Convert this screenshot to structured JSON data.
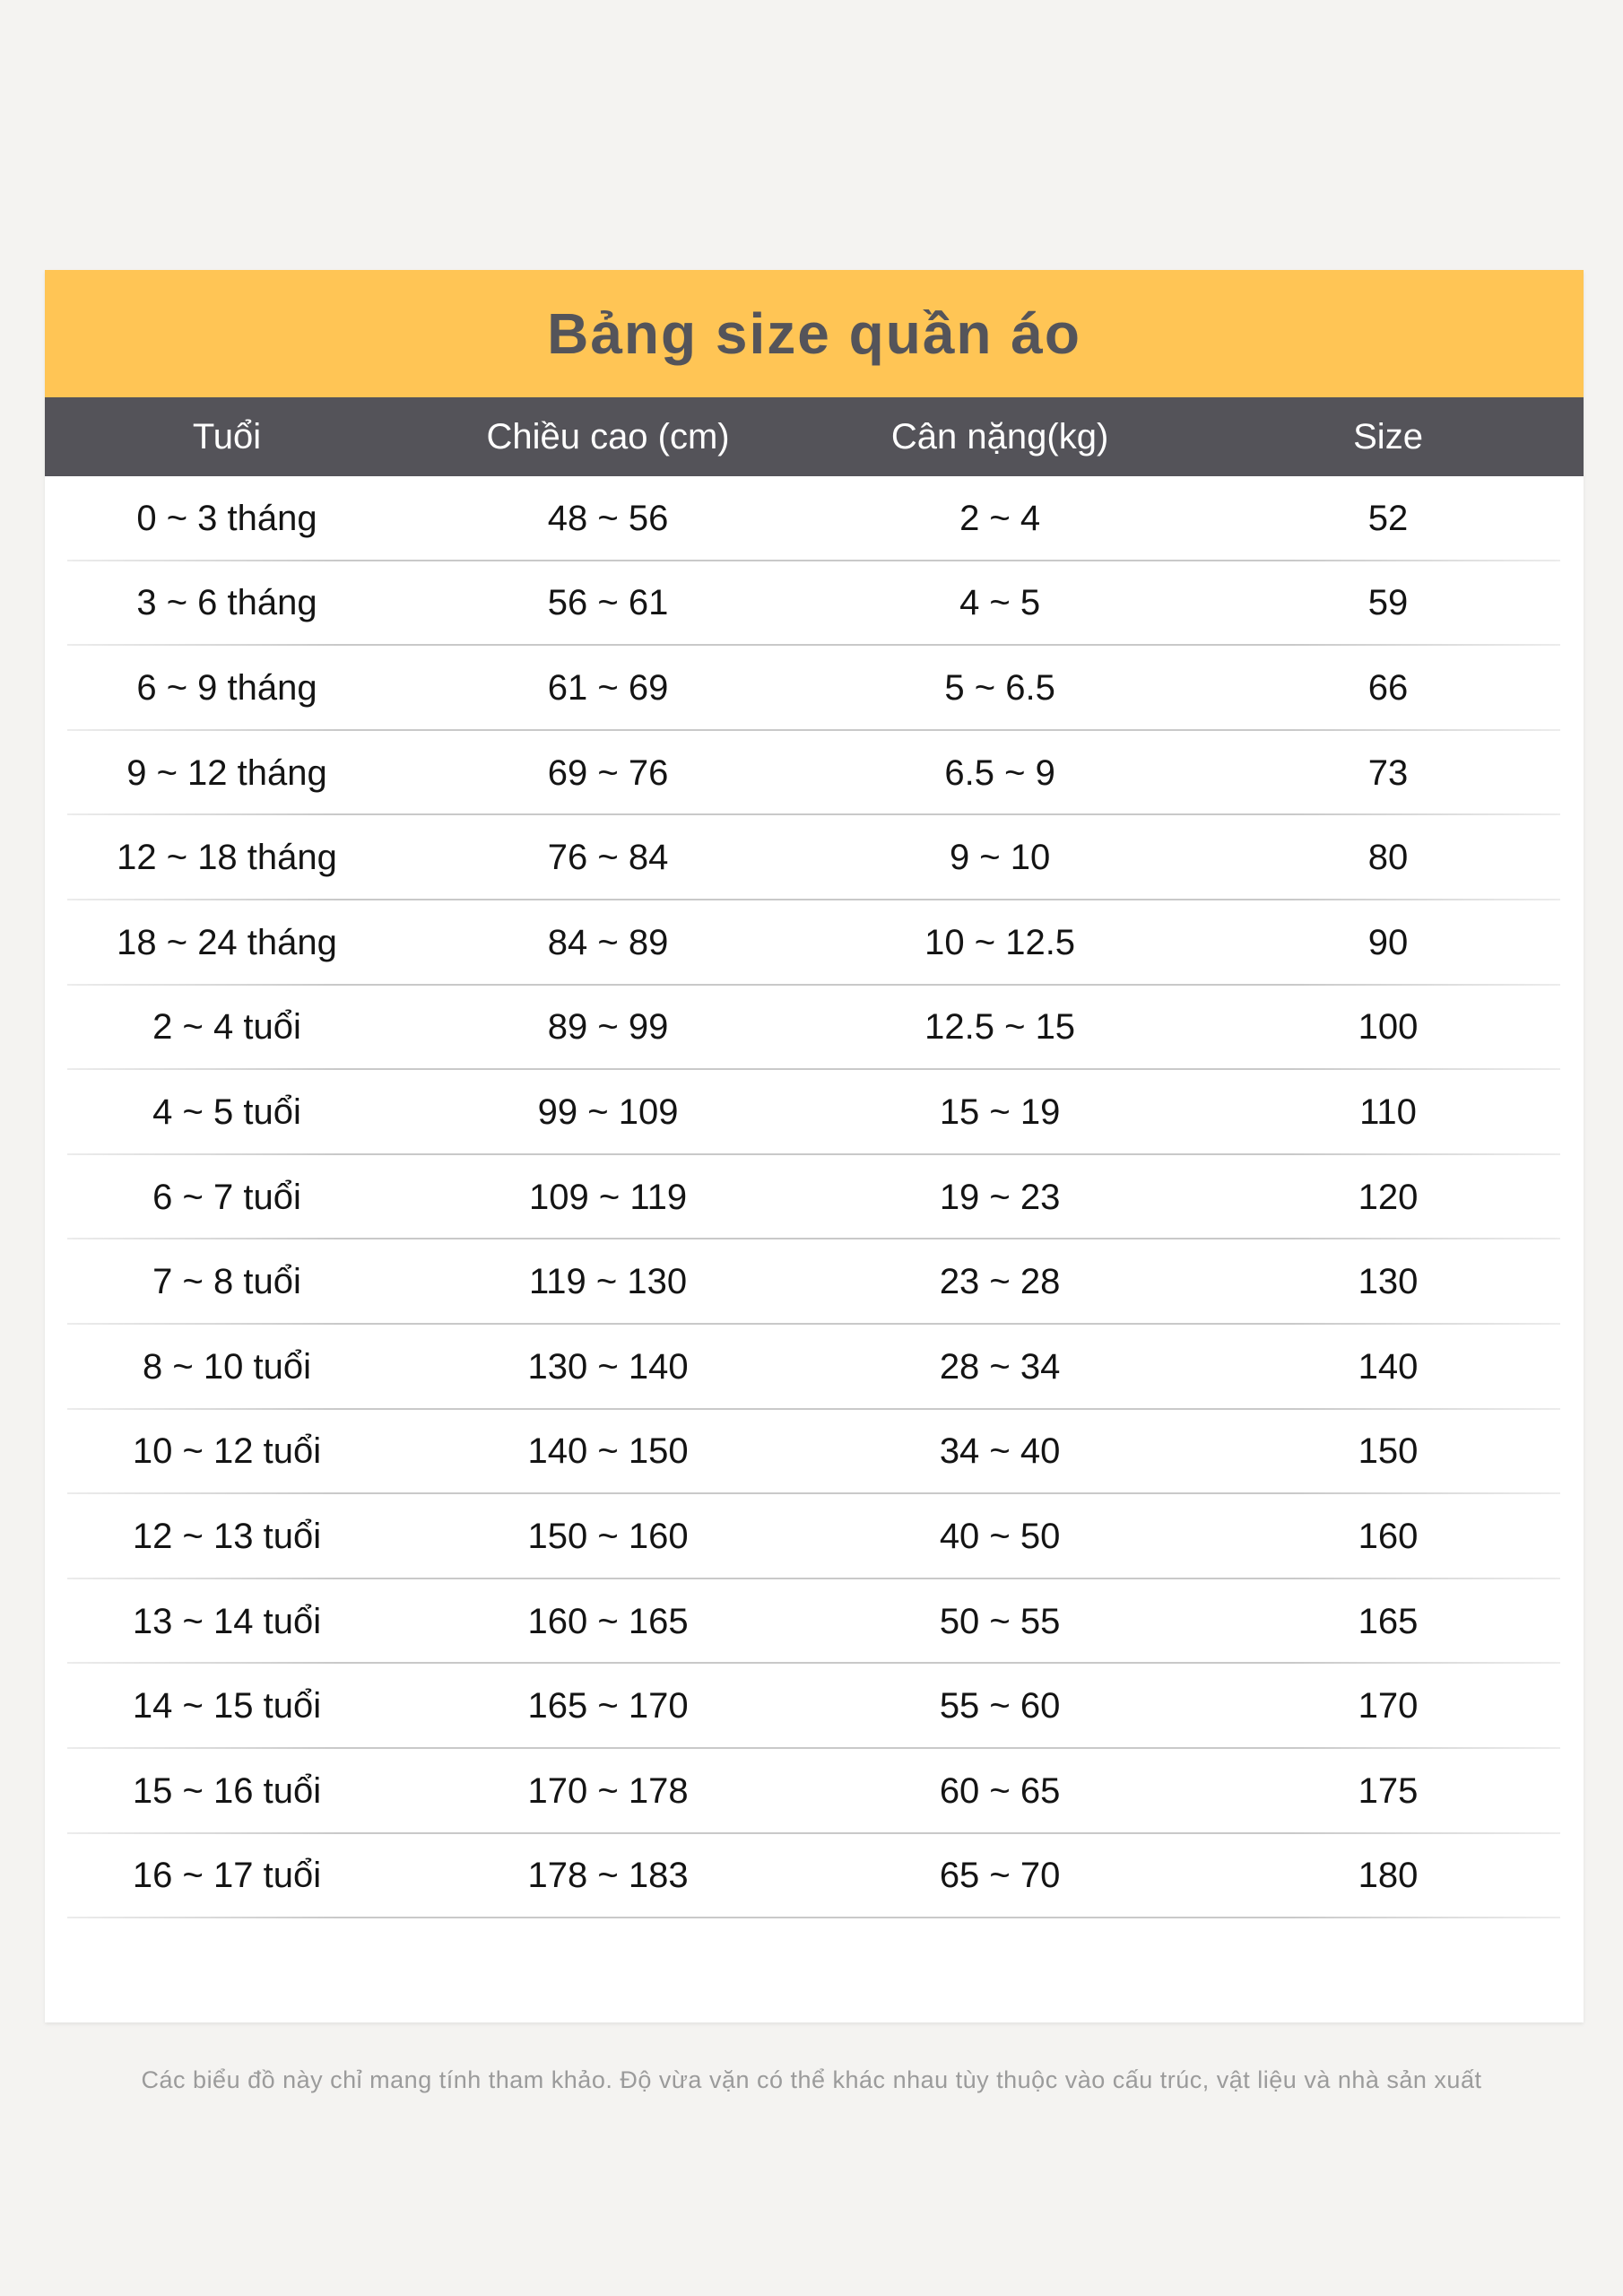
{
  "title": "Bảng size quần áo",
  "chart_data": {
    "type": "table",
    "title": "Bảng size quần áo",
    "columns": [
      "Tuổi",
      "Chiều cao (cm)",
      "Cân nặng(kg)",
      "Size"
    ],
    "rows": [
      [
        "0 ~ 3 tháng",
        "48 ~ 56",
        "2 ~ 4",
        "52"
      ],
      [
        "3 ~ 6 tháng",
        "56 ~ 61",
        "4 ~ 5",
        "59"
      ],
      [
        "6 ~ 9 tháng",
        "61 ~ 69",
        "5 ~ 6.5",
        "66"
      ],
      [
        "9 ~ 12 tháng",
        "69 ~ 76",
        "6.5 ~ 9",
        "73"
      ],
      [
        "12 ~ 18 tháng",
        "76 ~ 84",
        "9 ~ 10",
        "80"
      ],
      [
        "18 ~ 24 tháng",
        "84 ~ 89",
        "10 ~ 12.5",
        "90"
      ],
      [
        "2 ~ 4 tuổi",
        "89 ~ 99",
        "12.5 ~ 15",
        "100"
      ],
      [
        "4 ~ 5 tuổi",
        "99 ~ 109",
        "15 ~ 19",
        "110"
      ],
      [
        "6 ~ 7 tuổi",
        "109 ~ 119",
        "19 ~ 23",
        "120"
      ],
      [
        "7 ~ 8 tuổi",
        "119 ~ 130",
        "23 ~ 28",
        "130"
      ],
      [
        "8 ~ 10 tuổi",
        "130 ~ 140",
        "28 ~ 34",
        "140"
      ],
      [
        "10 ~ 12 tuổi",
        "140 ~ 150",
        "34 ~ 40",
        "150"
      ],
      [
        "12 ~ 13 tuổi",
        "150 ~ 160",
        "40 ~ 50",
        "160"
      ],
      [
        "13 ~ 14 tuổi",
        "160 ~ 165",
        "50 ~ 55",
        "165"
      ],
      [
        "14 ~ 15 tuổi",
        "165 ~ 170",
        "55 ~ 60",
        "170"
      ],
      [
        "15 ~ 16 tuổi",
        "170 ~ 178",
        "60 ~ 65",
        "175"
      ],
      [
        "16 ~ 17 tuổi",
        "178 ~ 183",
        "65 ~ 70",
        "180"
      ]
    ]
  },
  "footer": {
    "note": "Các biểu đồ này chỉ mang tính tham khảo. Độ vừa vặn có thể khác nhau tùy thuộc vào cấu trúc, vật liệu và nhà sản xuất"
  },
  "colors": {
    "page_background": "#f4f3f1",
    "accent_yellow": "#FFC555",
    "header_dark": "#545359",
    "title_text": "#54545A",
    "body_text": "#141414",
    "divider": "#c9c9c9",
    "footer_text": "#9b9b9b"
  }
}
